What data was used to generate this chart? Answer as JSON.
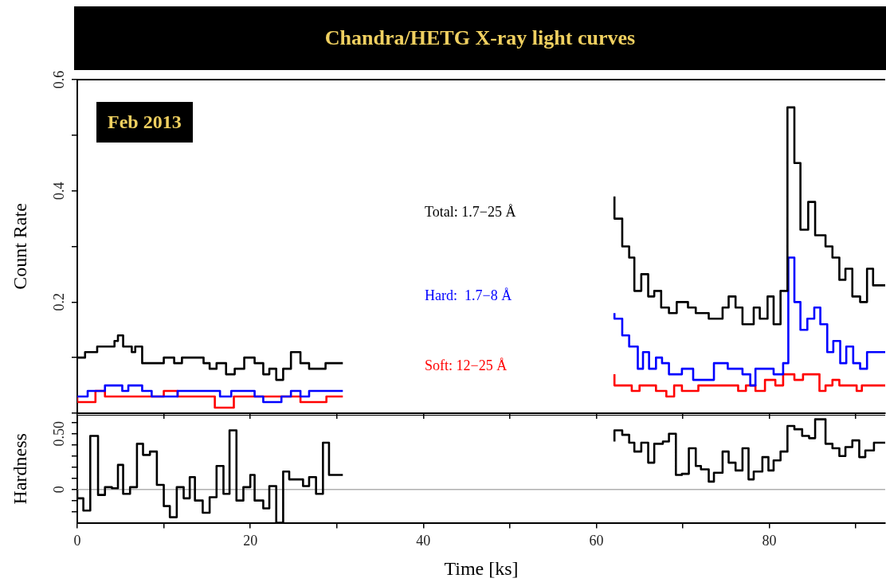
{
  "chart_data": [
    {
      "type": "step",
      "title": "Chandra/HETG X-ray light curves",
      "ylabel": "Count Rate",
      "annotations": [
        "Feb 2013"
      ],
      "xlim": [
        0,
        93.4
      ],
      "ylim": [
        0,
        0.6
      ],
      "xticks": [
        0,
        {
          "value": 10,
          "label": null
        },
        20,
        {
          "value": 30,
          "label": null
        },
        40,
        {
          "value": 50,
          "label": null
        },
        60,
        {
          "value": 70,
          "label": null
        },
        80,
        {
          "value": 90,
          "label": null
        }
      ],
      "yticks": [
        {
          "value": 0,
          "label": null
        },
        {
          "value": 0.1,
          "label": null
        },
        0.2,
        {
          "value": 0.3,
          "label": null
        },
        0.4,
        {
          "value": 0.5,
          "label": null
        },
        0.6
      ],
      "tick_labels": "y",
      "series": [
        {
          "name": "Total: 1.7−25 Å",
          "color": "#000000",
          "x": [
            0,
            0.9,
            2.3,
            3.2,
            4.3,
            4.7,
            5.3,
            6.3,
            6.7,
            7.5,
            8.4,
            8.9,
            10,
            11.2,
            12.1,
            13.5,
            14.6,
            15.3,
            16.1,
            17.2,
            18.2,
            19.3,
            20.5,
            21.5,
            22.2,
            23,
            23.8,
            24.7,
            25.8,
            26.8,
            27.6,
            28.7,
            29.9,
            30.7,
            46,
            62.1,
            63,
            63.8,
            64.4,
            65.2,
            66,
            66.7,
            67.5,
            68.4,
            69.3,
            70.6,
            71.5,
            72.1,
            73,
            74.6,
            75.3,
            76.1,
            76.9,
            77.5,
            78.2,
            78.9,
            79.8,
            80.5,
            81.3,
            82.1,
            82.9,
            83.6,
            84.5,
            85.3,
            86.5,
            87.3,
            88.1,
            88.8,
            89.6,
            90.5,
            91.3,
            92,
            92.8,
            93.4
          ],
          "values": [
            0.1,
            0.1,
            0.11,
            0.12,
            0.12,
            0.13,
            0.14,
            0.12,
            0.11,
            0.12,
            0.09,
            0.09,
            0.09,
            0.1,
            0.09,
            0.1,
            0.1,
            0.09,
            0.08,
            0.09,
            0.07,
            0.08,
            0.1,
            0.09,
            0.07,
            0.08,
            0.06,
            0.08,
            0.11,
            0.09,
            0.08,
            0.08,
            0.09,
            0.09,
            null,
            0.39,
            0.35,
            0.3,
            0.28,
            0.22,
            0.25,
            0.21,
            0.22,
            0.19,
            0.18,
            0.2,
            0.19,
            0.18,
            0.18,
            0.17,
            0.19,
            0.21,
            0.19,
            0.16,
            0.16,
            0.19,
            0.17,
            0.21,
            0.16,
            0.22,
            0.55,
            0.45,
            0.33,
            0.38,
            0.32,
            0.3,
            0.28,
            0.24,
            0.26,
            0.21,
            0.2,
            0.26,
            0.23,
            0.23
          ]
        },
        {
          "name": "Hard:  1.7−8 Å",
          "color": "#0000ff",
          "x": [
            0,
            1.2,
            2.1,
            3.2,
            5.2,
            5.9,
            7.5,
            8.6,
            9.8,
            11.6,
            16.5,
            17.8,
            20.5,
            21.5,
            23.6,
            24.7,
            25.8,
            26.8,
            29,
            30.7,
            46,
            62.1,
            63,
            63.8,
            64.8,
            65.4,
            66.1,
            66.9,
            67.6,
            68.4,
            69.9,
            71.2,
            72.1,
            73.6,
            75.2,
            76.9,
            77.8,
            78.4,
            79.6,
            80.5,
            81.6,
            82.2,
            82.9,
            83.6,
            84.4,
            85.2,
            85.9,
            86.7,
            87.4,
            88.2,
            88.9,
            89.7,
            90.5,
            91.3,
            92,
            92.8,
            93.4
          ],
          "values": [
            0.03,
            0.03,
            0.04,
            0.04,
            0.05,
            0.04,
            0.05,
            0.04,
            0.03,
            0.03,
            0.04,
            0.03,
            0.04,
            0.03,
            0.02,
            0.03,
            0.04,
            0.03,
            0.04,
            0.04,
            null,
            0.18,
            0.17,
            0.14,
            0.12,
            0.08,
            0.11,
            0.08,
            0.1,
            0.09,
            0.07,
            0.08,
            0.06,
            0.06,
            0.09,
            0.08,
            0.07,
            0.05,
            0.08,
            0.08,
            0.07,
            0.09,
            0.28,
            0.2,
            0.15,
            0.17,
            0.19,
            0.16,
            0.11,
            0.13,
            0.09,
            0.12,
            0.09,
            0.08,
            0.11,
            0.11,
            0.11
          ]
        },
        {
          "name": "Soft: 12−25 Å",
          "color": "#ff0000",
          "x": [
            0,
            2.1,
            3.2,
            7.6,
            8.6,
            10,
            11.6,
            12.9,
            15.9,
            18.1,
            19.3,
            20.8,
            23.3,
            25.8,
            28.8,
            29.9,
            30.7,
            46,
            62.1,
            63,
            64.1,
            65,
            65.8,
            66.9,
            68.1,
            69,
            69.9,
            70.9,
            71.8,
            73.6,
            74.6,
            75.5,
            76.4,
            77.3,
            78.4,
            79.5,
            80.7,
            81.6,
            82.9,
            83.9,
            85,
            85.8,
            86.5,
            87.3,
            88.1,
            89.1,
            90.1,
            90.7,
            91.6,
            92.2,
            93.4
          ],
          "values": [
            0.03,
            0.02,
            0.04,
            0.03,
            0.03,
            0.03,
            0.04,
            0.03,
            0.03,
            0.01,
            0.03,
            0.03,
            0.03,
            0.03,
            0.02,
            0.03,
            0.03,
            null,
            0.07,
            0.05,
            0.05,
            0.04,
            0.05,
            0.05,
            0.04,
            0.03,
            0.05,
            0.04,
            0.04,
            0.05,
            0.05,
            0.05,
            0.05,
            0.04,
            0.05,
            0.04,
            0.06,
            0.05,
            0.07,
            0.06,
            0.07,
            0.07,
            0.04,
            0.05,
            0.06,
            0.05,
            0.05,
            0.04,
            0.05,
            0.05,
            0.05
          ]
        }
      ]
    },
    {
      "type": "step",
      "xlabel": "Time [ks]",
      "ylabel": "Hardness",
      "xlim": [
        0,
        93.4
      ],
      "ylim": [
        -0.3,
        0.67
      ],
      "xticks": [
        0,
        {
          "value": 10,
          "label": null
        },
        20,
        {
          "value": 30,
          "label": null
        },
        40,
        {
          "value": 50,
          "label": null
        },
        60,
        {
          "value": 70,
          "label": null
        },
        80,
        {
          "value": 90,
          "label": null
        }
      ],
      "yticks": [
        {
          "value": -0.2,
          "label": null
        },
        {
          "value": -0.1,
          "label": null
        },
        0,
        {
          "value": 0.1,
          "label": null
        },
        {
          "value": 0.2,
          "label": null
        },
        {
          "value": 0.3,
          "label": null
        },
        {
          "value": 0.4,
          "label": null
        },
        {
          "value": 0.5,
          "label": "0.50"
        },
        {
          "value": 0.6,
          "label": null
        }
      ],
      "ref_lines": [
        {
          "axis": "y",
          "value": 0,
          "color": "#b0b0b0"
        }
      ],
      "series": [
        {
          "color": "#000000",
          "x": [
            0,
            0.7,
            1.5,
            2.4,
            3.2,
            4,
            4.7,
            5.3,
            6.1,
            6.9,
            7.6,
            8.4,
            9.2,
            10,
            10.7,
            11.5,
            12.3,
            13,
            13.6,
            14.5,
            15.3,
            16.1,
            16.9,
            17.6,
            18.4,
            19.2,
            20,
            20.5,
            21.5,
            22.2,
            23,
            23.8,
            24.5,
            26.1,
            26.8,
            27.6,
            28.4,
            29.1,
            29.9,
            30.7,
            46,
            62.1,
            63,
            63.8,
            64.4,
            65.2,
            66,
            66.7,
            67.7,
            68.4,
            69.2,
            69.9,
            70.7,
            71.5,
            72.1,
            73,
            73.6,
            74.6,
            75.3,
            76.1,
            76.9,
            77.6,
            78.2,
            79.2,
            79.9,
            80.5,
            81.3,
            82.1,
            82.9,
            83.8,
            84.6,
            85.3,
            86.5,
            87.3,
            88.1,
            88.8,
            89.6,
            90.4,
            91.1,
            92.1,
            92.8,
            93.4
          ],
          "values": [
            0,
            -0.08,
            -0.19,
            0.48,
            -0.05,
            0.02,
            0.01,
            0.22,
            -0.04,
            0.02,
            0.41,
            0.31,
            0.34,
            0.04,
            -0.15,
            -0.25,
            0.02,
            -0.08,
            0.11,
            -0.1,
            -0.21,
            -0.07,
            0.21,
            -0.04,
            0.53,
            -0.1,
            0.02,
            0.13,
            -0.1,
            -0.17,
            0.03,
            -0.3,
            0.16,
            0.09,
            0.03,
            0.11,
            -0.04,
            0.42,
            0.13,
            0.13,
            null,
            0.43,
            0.53,
            0.49,
            0.42,
            0.34,
            0.42,
            0.24,
            0.41,
            0.43,
            0.5,
            0.13,
            0.14,
            0.37,
            0.21,
            0.18,
            0.07,
            0.15,
            0.34,
            0.24,
            0.17,
            0.37,
            0.09,
            0.16,
            0.29,
            0.17,
            0.26,
            0.34,
            0.57,
            0.54,
            0.48,
            0.46,
            0.63,
            0.41,
            0.37,
            0.3,
            0.38,
            0.44,
            0.29,
            0.35,
            0.42,
            0.42
          ]
        }
      ]
    }
  ]
}
